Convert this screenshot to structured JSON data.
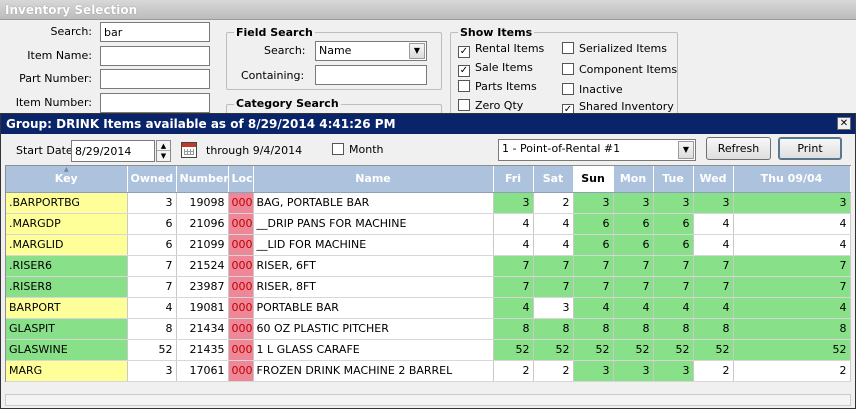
{
  "window": {
    "title": "Inventory Selection"
  },
  "search_panel": {
    "search_label": "Search:",
    "search_value": "bar",
    "item_name_label": "Item Name:",
    "part_number_label": "Part Number:",
    "item_number_label": "Item Number:"
  },
  "field_search": {
    "title": "Field Search",
    "search_label": "Search:",
    "search_value": "Name",
    "containing_label": "Containing:"
  },
  "category_search": {
    "title": "Category Search"
  },
  "show_items": {
    "title": "Show Items",
    "items": [
      {
        "label": "Rental Items",
        "checked": true
      },
      {
        "label": "Sale Items",
        "checked": true
      },
      {
        "label": "Parts Items",
        "checked": false
      },
      {
        "label": "Zero Qty",
        "checked": false
      },
      {
        "label": "Serialized Items",
        "checked": false
      },
      {
        "label": "Component Items",
        "checked": false
      },
      {
        "label": "Inactive",
        "checked": false
      },
      {
        "label": "Shared Inventory",
        "checked": true
      }
    ]
  },
  "popup": {
    "title": "Group: DRINK Items available as of 8/29/2014 4:41:26 PM",
    "close_label": "✕",
    "start_date_label": "Start Date:",
    "start_date_value": "8/29/2014",
    "through_label": "through 9/4/2014",
    "month_label": "Month",
    "month_checked": false,
    "store_value": "1 - Point-of-Rental #1",
    "refresh_label": "Refresh",
    "print_label": "Print"
  },
  "grid": {
    "columns": [
      "Key",
      "Owned",
      "Number",
      "Loc",
      "Name",
      "Fri",
      "Sat",
      "Sun",
      "Mon",
      "Tue",
      "Wed",
      "Thu 09/04"
    ],
    "today_column": "Sun",
    "rows": [
      {
        "key": ".BARPORTBG",
        "owned": "3",
        "number": "19098",
        "loc": "000",
        "name": "BAG, PORTABLE BAR",
        "days": [
          "3",
          "2",
          "3",
          "3",
          "3",
          "3",
          "3"
        ],
        "key_color": "yellow",
        "avail": [
          "g",
          "w",
          "g",
          "g",
          "g",
          "g",
          "g"
        ]
      },
      {
        "key": ".MARGDP",
        "owned": "6",
        "number": "21096",
        "loc": "000",
        "name": "__DRIP PANS FOR MACHINE",
        "days": [
          "4",
          "4",
          "6",
          "6",
          "6",
          "4",
          "4"
        ],
        "key_color": "yellow",
        "avail": [
          "w",
          "w",
          "g",
          "g",
          "g",
          "w",
          "w"
        ]
      },
      {
        "key": ".MARGLID",
        "owned": "6",
        "number": "21099",
        "loc": "000",
        "name": "__LID FOR MACHINE",
        "days": [
          "4",
          "4",
          "6",
          "6",
          "6",
          "4",
          "4"
        ],
        "key_color": "yellow",
        "avail": [
          "w",
          "w",
          "g",
          "g",
          "g",
          "w",
          "w"
        ]
      },
      {
        "key": ".RISER6",
        "owned": "7",
        "number": "21524",
        "loc": "000",
        "name": "RISER, 6FT",
        "days": [
          "7",
          "7",
          "7",
          "7",
          "7",
          "7",
          "7"
        ],
        "key_color": "green",
        "avail": [
          "g",
          "g",
          "g",
          "g",
          "g",
          "g",
          "g"
        ]
      },
      {
        "key": ".RISER8",
        "owned": "7",
        "number": "23987",
        "loc": "000",
        "name": "RISER, 8FT",
        "days": [
          "7",
          "7",
          "7",
          "7",
          "7",
          "7",
          "7"
        ],
        "key_color": "green",
        "avail": [
          "g",
          "g",
          "g",
          "g",
          "g",
          "g",
          "g"
        ]
      },
      {
        "key": "BARPORT",
        "owned": "4",
        "number": "19081",
        "loc": "000",
        "name": "PORTABLE BAR",
        "days": [
          "4",
          "3",
          "4",
          "4",
          "4",
          "4",
          "4"
        ],
        "key_color": "yellow",
        "avail": [
          "g",
          "w",
          "g",
          "g",
          "g",
          "g",
          "g"
        ]
      },
      {
        "key": "GLASPIT",
        "owned": "8",
        "number": "21434",
        "loc": "000",
        "name": "60 OZ PLASTIC PITCHER",
        "days": [
          "8",
          "8",
          "8",
          "8",
          "8",
          "8",
          "8"
        ],
        "key_color": "green",
        "avail": [
          "g",
          "g",
          "g",
          "g",
          "g",
          "g",
          "g"
        ]
      },
      {
        "key": "GLASWINE",
        "owned": "52",
        "number": "21435",
        "loc": "000",
        "name": "1 L GLASS CARAFE",
        "days": [
          "52",
          "52",
          "52",
          "52",
          "52",
          "52",
          "52"
        ],
        "key_color": "green",
        "avail": [
          "g",
          "g",
          "g",
          "g",
          "g",
          "g",
          "g"
        ]
      },
      {
        "key": "MARG",
        "owned": "3",
        "number": "17061",
        "loc": "000",
        "name": "FROZEN DRINK MACHINE 2 BARREL",
        "days": [
          "2",
          "2",
          "3",
          "3",
          "3",
          "2",
          "2"
        ],
        "key_color": "yellow",
        "avail": [
          "w",
          "w",
          "g",
          "g",
          "g",
          "w",
          "w"
        ]
      }
    ]
  }
}
